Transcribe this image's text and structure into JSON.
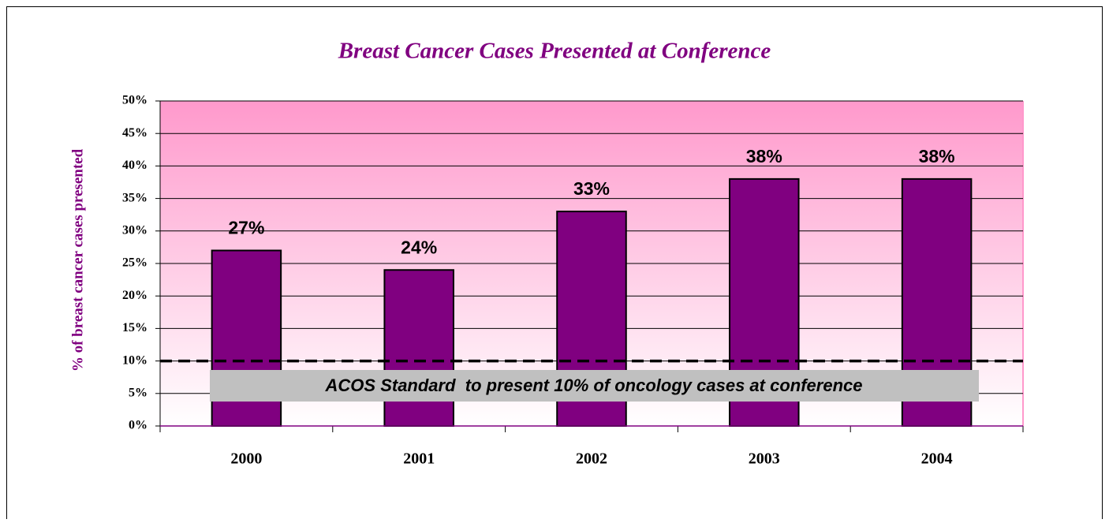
{
  "chart_data": {
    "type": "bar",
    "title": "Breast Cancer Cases Presented at Conference",
    "y_axis_label": "% of breast cancer cases presented",
    "categories": [
      "2000",
      "2001",
      "2002",
      "2003",
      "2004"
    ],
    "values": [
      27,
      24,
      33,
      38,
      38
    ],
    "value_labels": [
      "27%",
      "24%",
      "33%",
      "38%",
      "38%"
    ],
    "color": "#800080",
    "ylim": [
      0,
      50
    ],
    "yticks": [
      {
        "value": 0,
        "label": "0%"
      },
      {
        "value": 5,
        "label": "5%"
      },
      {
        "value": 10,
        "label": "10%"
      },
      {
        "value": 15,
        "label": "15%"
      },
      {
        "value": 20,
        "label": "20%"
      },
      {
        "value": 25,
        "label": "25%"
      },
      {
        "value": 30,
        "label": "30%"
      },
      {
        "value": 35,
        "label": "35%"
      },
      {
        "value": 40,
        "label": "40%"
      },
      {
        "value": 45,
        "label": "45%"
      },
      {
        "value": 50,
        "label": "50%"
      }
    ],
    "grid": true,
    "reference_line": {
      "value": 10,
      "label": "ACOS Standard  to present 10% of oncology cases at conference"
    }
  }
}
